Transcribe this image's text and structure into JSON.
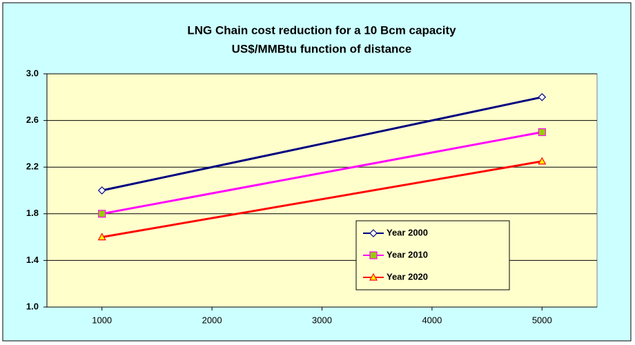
{
  "chart_data": {
    "type": "line",
    "title": [
      "LNG Chain cost reduction for a 10 Bcm capacity",
      "US$/MMBtu function of distance"
    ],
    "x": [
      1000,
      5000
    ],
    "xlim": [
      500,
      5500
    ],
    "xticks": [
      1000,
      2000,
      3000,
      4000,
      5000
    ],
    "ylim": [
      1.0,
      3.0
    ],
    "yticks": [
      {
        "value": 1.0,
        "label": "1.0"
      },
      1.4,
      1.8,
      2.2,
      2.6,
      {
        "value": 3.0,
        "label": "3.0"
      }
    ],
    "grid": true,
    "legend": "lower right",
    "series": [
      {
        "name": "Year 2000",
        "color": "#000080",
        "marker": "diamond",
        "marker_fill": "#ffffff",
        "values": [
          2.0,
          2.8
        ]
      },
      {
        "name": "Year 2010",
        "color": "#ff00ff",
        "marker": "square",
        "marker_fill": "#99cc00",
        "values": [
          1.8,
          2.5
        ]
      },
      {
        "name": "Year 2020",
        "color": "#ff0000",
        "marker": "triangle",
        "marker_fill": "#ffff00",
        "values": [
          1.6,
          2.25
        ]
      }
    ]
  }
}
